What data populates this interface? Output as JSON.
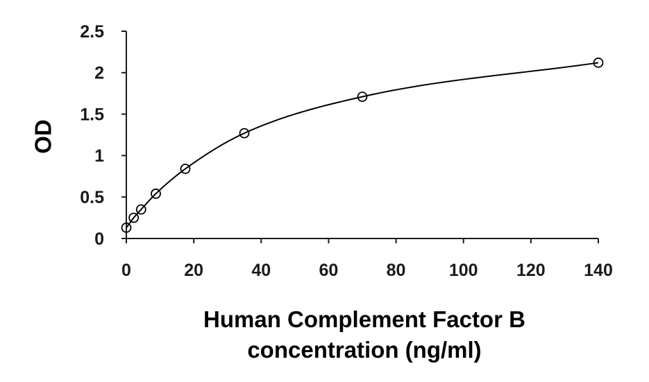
{
  "chart_data": {
    "type": "scatter",
    "title": "",
    "xlabel_lines": [
      "Human Complement Factor B",
      "concentration (ng/ml)"
    ],
    "ylabel": "OD",
    "xlim": [
      0,
      140
    ],
    "ylim": [
      0,
      2.5
    ],
    "x_ticks": [
      0,
      20,
      40,
      60,
      80,
      100,
      120,
      140
    ],
    "y_ticks": [
      0,
      0.5,
      1,
      1.5,
      2,
      2.5
    ],
    "y_tick_labels": [
      "0",
      "0.5",
      "1",
      "1.5",
      "2",
      "2.5"
    ],
    "grid": false,
    "legend": "none",
    "marker": "open-circle",
    "fit": "smooth standard curve through points",
    "series": [
      {
        "x": [
          0,
          2.19,
          4.38,
          8.75,
          17.5,
          35,
          70,
          140
        ],
        "y": [
          0.13,
          0.25,
          0.35,
          0.54,
          0.84,
          1.27,
          1.71,
          2.12
        ]
      }
    ],
    "colors": {
      "axis": "#1a1a1a",
      "series": "#000000"
    }
  }
}
